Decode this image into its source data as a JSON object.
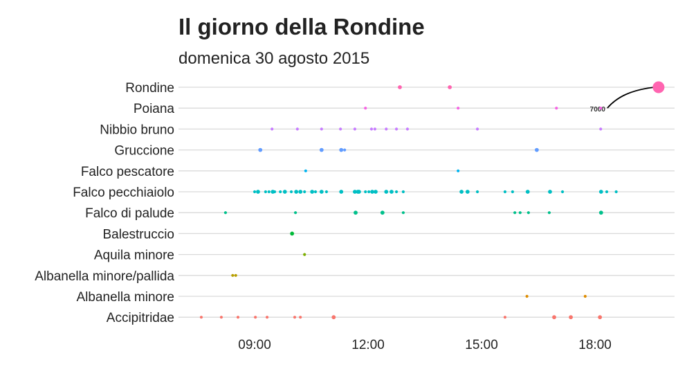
{
  "chart_data": {
    "type": "scatter",
    "title": "Il giorno della Rondine",
    "subtitle": "domenica 30 agosto 2015",
    "xlabel": "",
    "ylabel": "",
    "xlim_hours": [
      7,
      20
    ],
    "x_ticks": [
      {
        "value": 9,
        "label": "09:00"
      },
      {
        "value": 12,
        "label": "12:00"
      },
      {
        "value": 15,
        "label": "15:00"
      },
      {
        "value": 18,
        "label": "18:00"
      }
    ],
    "grid": "horizontal",
    "legend": "none",
    "annotation": {
      "series": "Rondine",
      "x": 19.68,
      "label": "7000"
    },
    "series": [
      {
        "name": "Rondine",
        "color": "#FF64B0",
        "points": [
          [
            12.84,
            2
          ],
          [
            14.16,
            2
          ],
          [
            19.68,
            8
          ]
        ]
      },
      {
        "name": "Poiana",
        "color": "#F564E3",
        "points": [
          [
            11.93,
            1
          ],
          [
            14.38,
            1
          ],
          [
            16.98,
            1
          ],
          [
            18.15,
            1
          ]
        ]
      },
      {
        "name": "Nibbio bruno",
        "color": "#C77CFF",
        "points": [
          [
            9.46,
            1
          ],
          [
            10.13,
            1
          ],
          [
            10.77,
            1
          ],
          [
            11.27,
            1
          ],
          [
            11.65,
            1
          ],
          [
            12.09,
            1
          ],
          [
            12.18,
            1
          ],
          [
            12.48,
            1
          ],
          [
            12.75,
            1
          ],
          [
            13.04,
            1
          ],
          [
            14.89,
            1
          ],
          [
            18.15,
            1
          ]
        ]
      },
      {
        "name": "Gruccione",
        "color": "#619CFF",
        "points": [
          [
            9.15,
            2
          ],
          [
            10.77,
            2
          ],
          [
            11.29,
            2
          ],
          [
            11.38,
            1
          ],
          [
            16.46,
            2
          ]
        ]
      },
      {
        "name": "Falco pescatore",
        "color": "#00B4F0",
        "points": [
          [
            10.35,
            1
          ],
          [
            14.38,
            1
          ]
        ]
      },
      {
        "name": "Falco pecchiaiolo",
        "color": "#00BFC4",
        "points": [
          [
            9.0,
            1
          ],
          [
            9.09,
            2
          ],
          [
            9.29,
            1
          ],
          [
            9.38,
            1
          ],
          [
            9.48,
            2
          ],
          [
            9.53,
            1
          ],
          [
            9.68,
            1
          ],
          [
            9.8,
            2
          ],
          [
            9.97,
            1
          ],
          [
            10.1,
            2
          ],
          [
            10.21,
            2
          ],
          [
            10.32,
            1
          ],
          [
            10.52,
            2
          ],
          [
            10.61,
            1
          ],
          [
            10.77,
            2
          ],
          [
            10.9,
            1
          ],
          [
            11.29,
            2
          ],
          [
            11.65,
            2
          ],
          [
            11.73,
            2
          ],
          [
            11.76,
            2
          ],
          [
            11.93,
            1
          ],
          [
            12.02,
            1
          ],
          [
            12.11,
            2
          ],
          [
            12.2,
            2
          ],
          [
            12.48,
            2
          ],
          [
            12.62,
            2
          ],
          [
            12.75,
            1
          ],
          [
            12.93,
            1
          ],
          [
            14.47,
            2
          ],
          [
            14.63,
            2
          ],
          [
            14.89,
            1
          ],
          [
            15.62,
            1
          ],
          [
            15.82,
            1
          ],
          [
            16.22,
            2
          ],
          [
            16.81,
            2
          ],
          [
            17.14,
            1
          ],
          [
            18.16,
            2
          ],
          [
            18.31,
            1
          ],
          [
            18.56,
            1
          ]
        ]
      },
      {
        "name": "Falco di palude",
        "color": "#00C08B",
        "points": [
          [
            8.23,
            1
          ],
          [
            10.08,
            1
          ],
          [
            11.67,
            2
          ],
          [
            12.38,
            2
          ],
          [
            12.93,
            1
          ],
          [
            15.88,
            1
          ],
          [
            16.02,
            1
          ],
          [
            16.24,
            1
          ],
          [
            16.79,
            1
          ],
          [
            18.16,
            2
          ]
        ]
      },
      {
        "name": "Balestruccio",
        "color": "#00BA38",
        "points": [
          [
            9.99,
            2
          ]
        ]
      },
      {
        "name": "Aquila minore",
        "color": "#7CAE00",
        "points": [
          [
            10.32,
            1
          ]
        ]
      },
      {
        "name": "Albanella minore/pallida",
        "color": "#B79F00",
        "points": [
          [
            8.42,
            1
          ],
          [
            8.5,
            1
          ]
        ]
      },
      {
        "name": "Albanella minore",
        "color": "#DE8C00",
        "points": [
          [
            16.2,
            1
          ],
          [
            17.74,
            1
          ]
        ]
      },
      {
        "name": "Accipitridae",
        "color": "#F8766D",
        "points": [
          [
            7.59,
            1
          ],
          [
            8.12,
            1
          ],
          [
            8.56,
            1
          ],
          [
            9.02,
            1
          ],
          [
            9.33,
            1
          ],
          [
            10.06,
            1
          ],
          [
            10.21,
            1
          ],
          [
            11.09,
            2
          ],
          [
            15.62,
            1
          ],
          [
            16.92,
            2
          ],
          [
            17.36,
            2
          ],
          [
            18.13,
            2
          ]
        ]
      }
    ]
  }
}
